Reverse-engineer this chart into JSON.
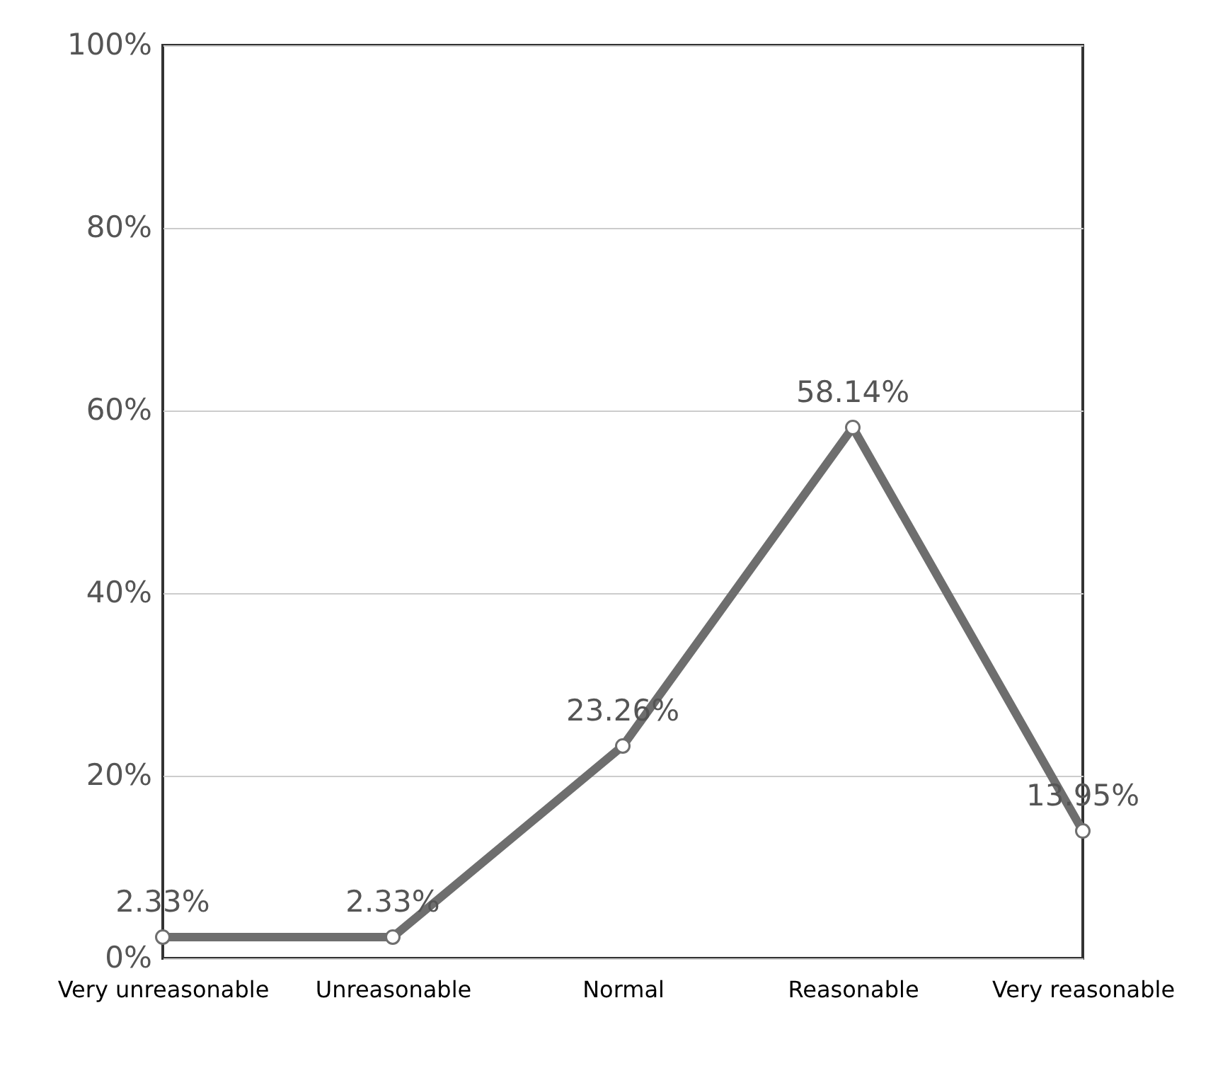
{
  "chart_data": {
    "type": "line",
    "categories": [
      "Very unreasonable",
      "Unreasonable",
      "Normal",
      "Reasonable",
      "Very reasonable"
    ],
    "series": [
      {
        "color": "#6e6e6e",
        "values": [
          2.33,
          2.33,
          23.26,
          58.14,
          13.95
        ]
      }
    ],
    "value_labels": [
      "2.33%",
      "2.33%",
      "23.26%",
      "58.14%",
      "13.95%"
    ],
    "ylim": [
      0,
      100
    ],
    "yticks": [
      {
        "value": 0,
        "label": "0%"
      },
      {
        "value": 20,
        "label": "20%"
      },
      {
        "value": 40,
        "label": "40%"
      },
      {
        "value": 60,
        "label": "60%"
      },
      {
        "value": 80,
        "label": "80%"
      },
      {
        "value": 100,
        "label": "100%"
      }
    ],
    "grid": "y",
    "marker": "circle",
    "line_style": "solid"
  }
}
